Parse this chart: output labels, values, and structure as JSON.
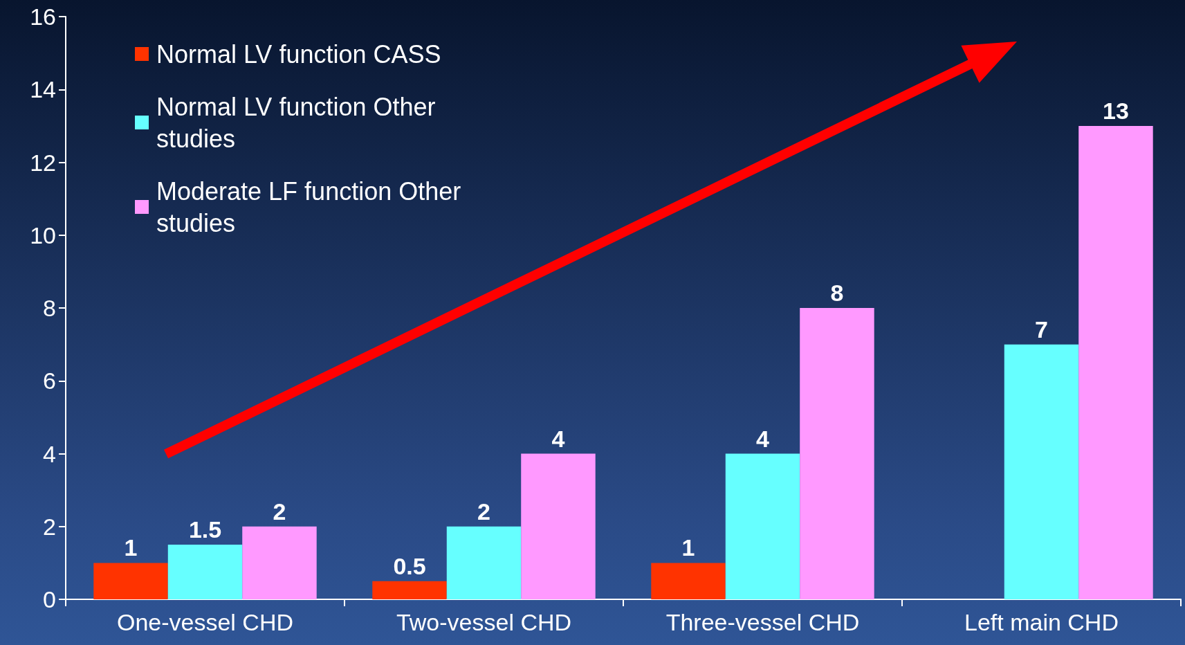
{
  "chart_data": {
    "type": "bar",
    "categories": [
      "One-vessel CHD",
      "Two-vessel CHD",
      "Three-vessel CHD",
      "Left main CHD"
    ],
    "series": [
      {
        "name": "Normal LV function CASS",
        "color": "#ff3300",
        "values": [
          1,
          0.5,
          1,
          null
        ]
      },
      {
        "name": "Normal LV function Other studies",
        "color": "#66ffff",
        "values": [
          1.5,
          2,
          4,
          7
        ]
      },
      {
        "name": "Moderate LF function Other studies",
        "color": "#ff99ff",
        "values": [
          2,
          4,
          8,
          13
        ]
      }
    ],
    "ylim": [
      0,
      16
    ],
    "yticks": [
      0,
      2,
      4,
      6,
      8,
      10,
      12,
      14,
      16
    ],
    "grid": false,
    "legend": "top left",
    "data_labels": true
  }
}
